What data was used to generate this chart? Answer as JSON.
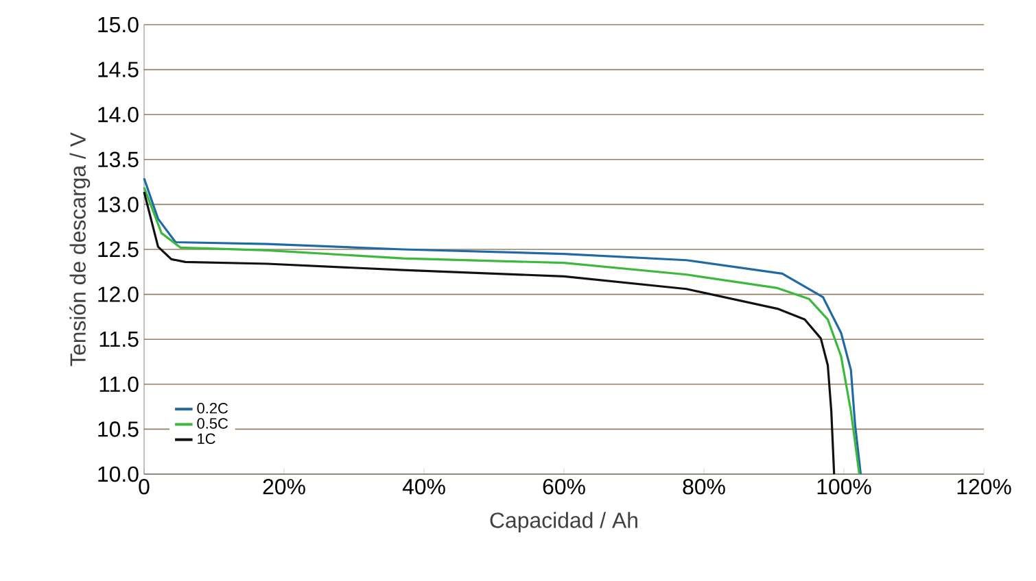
{
  "chart_data": {
    "type": "line",
    "xlabel": "Capacidad / Ah",
    "ylabel": "Tensión de descarga / V",
    "xlim": [
      0,
      120
    ],
    "ylim": [
      10,
      15
    ],
    "xticks": [
      {
        "value": 0,
        "label": "0"
      },
      {
        "value": 20,
        "label": "20%"
      },
      {
        "value": 40,
        "label": "40%"
      },
      {
        "value": 60,
        "label": "60%"
      },
      {
        "value": 80,
        "label": "80%"
      },
      {
        "value": 100,
        "label": "100%"
      },
      {
        "value": 120,
        "label": "120%"
      }
    ],
    "yticks": [
      {
        "value": 10,
        "label": "10.0"
      },
      {
        "value": 10.5,
        "label": "10.5"
      },
      {
        "value": 11,
        "label": "11.0"
      },
      {
        "value": 11.5,
        "label": "11.5"
      },
      {
        "value": 12,
        "label": "12.0"
      },
      {
        "value": 12.5,
        "label": "12.5"
      },
      {
        "value": 13,
        "label": "13.0"
      },
      {
        "value": 13.5,
        "label": "13.5"
      },
      {
        "value": 14,
        "label": "14.0"
      },
      {
        "value": 14.5,
        "label": "14.5"
      },
      {
        "value": 15,
        "label": "15.0"
      }
    ],
    "grid": "y",
    "legend": "bottom left",
    "marker": "none",
    "line_style": "solid",
    "series": [
      {
        "name": "0.2C",
        "color": "#1f6aa5",
        "x": [
          0,
          2,
          4.5,
          17.6,
          37,
          60,
          77.5,
          91.2,
          97,
          99.6,
          101,
          101.6,
          102.4
        ],
        "values": [
          13.29,
          12.84,
          12.58,
          12.56,
          12.5,
          12.45,
          12.38,
          12.23,
          11.97,
          11.57,
          11.16,
          10.55,
          10.0
        ]
      },
      {
        "name": "0.5C",
        "color": "#3cb83c",
        "x": [
          0,
          2.5,
          5.2,
          17.6,
          37,
          60,
          77.5,
          90.5,
          95,
          97.7,
          99.6,
          101,
          102.2
        ],
        "values": [
          13.19,
          12.68,
          12.52,
          12.49,
          12.4,
          12.35,
          12.22,
          12.07,
          11.95,
          11.72,
          11.31,
          10.7,
          10.0
        ]
      },
      {
        "name": "1C",
        "color": "#111111",
        "x": [
          0,
          2,
          3.9,
          5.9,
          17.6,
          37,
          60,
          77.5,
          90.5,
          94.4,
          96.7,
          97.7,
          98.2,
          98.6
        ],
        "values": [
          13.14,
          12.53,
          12.39,
          12.36,
          12.34,
          12.27,
          12.2,
          12.06,
          11.84,
          11.72,
          11.51,
          11.21,
          10.7,
          10.0
        ]
      }
    ]
  }
}
